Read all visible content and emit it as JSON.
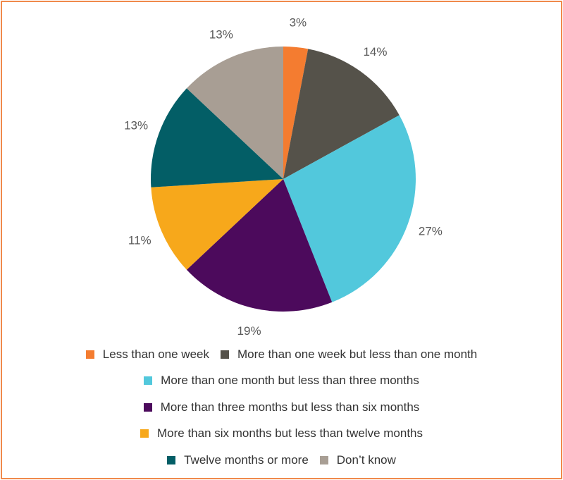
{
  "chart_data": {
    "type": "pie",
    "categories": [
      "Less than one week",
      "More than one week but less than one month",
      "More than one month but less than three months",
      "More than three months but less than six months",
      "More than six months but less than twelve months",
      "Twelve months or more",
      "Don’t know"
    ],
    "values": [
      3,
      14,
      27,
      19,
      11,
      13,
      13
    ],
    "value_labels": [
      "3%",
      "14%",
      "27%",
      "19%",
      "11%",
      "13%",
      "13%"
    ],
    "colors": [
      "#f47c30",
      "#55524a",
      "#52c8dc",
      "#4c0a5c",
      "#f7a81b",
      "#035e66",
      "#a89e94"
    ],
    "legend": "bottom"
  }
}
